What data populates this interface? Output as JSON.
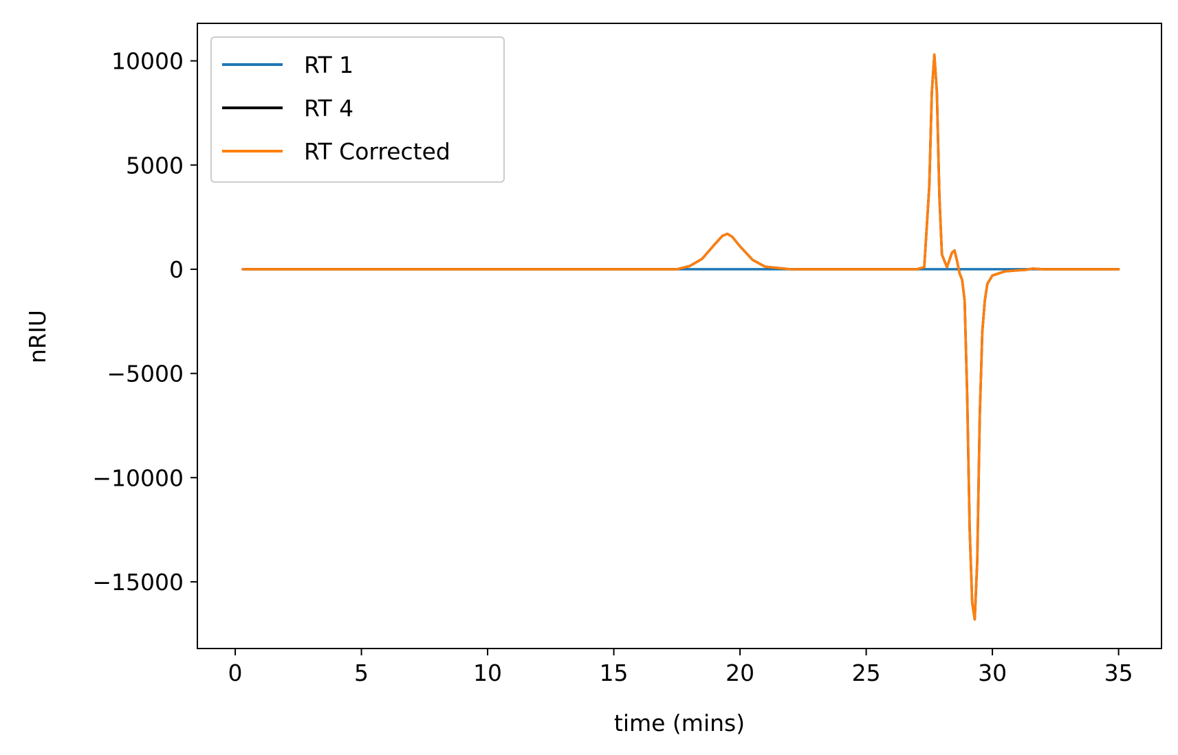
{
  "chart_data": {
    "type": "line",
    "xlabel": "time (mins)",
    "ylabel": "nRIU",
    "xlim": [
      -1.5,
      36.7
    ],
    "ylim": [
      -18200,
      11800
    ],
    "x_ticks": [
      0,
      5,
      10,
      15,
      20,
      25,
      30,
      35
    ],
    "x_tick_labels": [
      "0",
      "5",
      "10",
      "15",
      "20",
      "25",
      "30",
      "35"
    ],
    "y_ticks": [
      10000,
      5000,
      0,
      -5000,
      -10000,
      -15000
    ],
    "y_tick_labels": [
      "10000",
      "5000",
      "0",
      "−5000",
      "−10000",
      "−15000"
    ],
    "grid": false,
    "legend_position": "top-left",
    "series": [
      {
        "name": "RT 1",
        "color": "#1f77b4",
        "x": [
          0.3,
          35.0
        ],
        "y": [
          0,
          0
        ]
      },
      {
        "name": "RT 4",
        "color": "#000000",
        "x": [
          0.3,
          5,
          10,
          15,
          17.5,
          18.0,
          18.5,
          19.0,
          19.3,
          19.5,
          19.7,
          20.0,
          20.5,
          21.0,
          22.0,
          25,
          27.0,
          27.3,
          27.5,
          27.6,
          27.7,
          27.8,
          27.9,
          28.0,
          28.2,
          28.4,
          28.5,
          28.6,
          28.7,
          28.8,
          28.9,
          29.0,
          29.1,
          29.2,
          29.3,
          29.4,
          29.5,
          29.6,
          29.7,
          29.8,
          30.0,
          30.5,
          31.0,
          31.3,
          31.6,
          32.0,
          33.0,
          35.0
        ],
        "y": [
          0,
          0,
          0,
          0,
          0,
          150,
          500,
          1200,
          1600,
          1700,
          1550,
          1100,
          450,
          120,
          0,
          0,
          0,
          100,
          4000,
          8500,
          10300,
          8500,
          3500,
          700,
          100,
          800,
          900,
          400,
          -200,
          -500,
          -1500,
          -6000,
          -12500,
          -16000,
          -16800,
          -14000,
          -7000,
          -3000,
          -1500,
          -700,
          -300,
          -100,
          -50,
          -30,
          30,
          0,
          0,
          0
        ]
      },
      {
        "name": "RT Corrected",
        "color": "#ff7f0e",
        "x": [
          0.3,
          5,
          10,
          15,
          17.5,
          18.0,
          18.5,
          19.0,
          19.3,
          19.5,
          19.7,
          20.0,
          20.5,
          21.0,
          22.0,
          25,
          27.0,
          27.3,
          27.5,
          27.6,
          27.7,
          27.8,
          27.9,
          28.0,
          28.2,
          28.4,
          28.5,
          28.6,
          28.7,
          28.8,
          28.9,
          29.0,
          29.1,
          29.2,
          29.3,
          29.4,
          29.5,
          29.6,
          29.7,
          29.8,
          30.0,
          30.5,
          31.0,
          31.3,
          31.6,
          32.0,
          33.0,
          35.0
        ],
        "y": [
          0,
          0,
          0,
          0,
          0,
          150,
          500,
          1200,
          1600,
          1700,
          1550,
          1100,
          450,
          120,
          0,
          0,
          0,
          100,
          4000,
          8500,
          10300,
          8500,
          3500,
          700,
          100,
          800,
          900,
          400,
          -200,
          -500,
          -1500,
          -6000,
          -12500,
          -16000,
          -16800,
          -14000,
          -7000,
          -3000,
          -1500,
          -700,
          -300,
          -100,
          -50,
          -30,
          30,
          0,
          0,
          0
        ]
      }
    ]
  }
}
